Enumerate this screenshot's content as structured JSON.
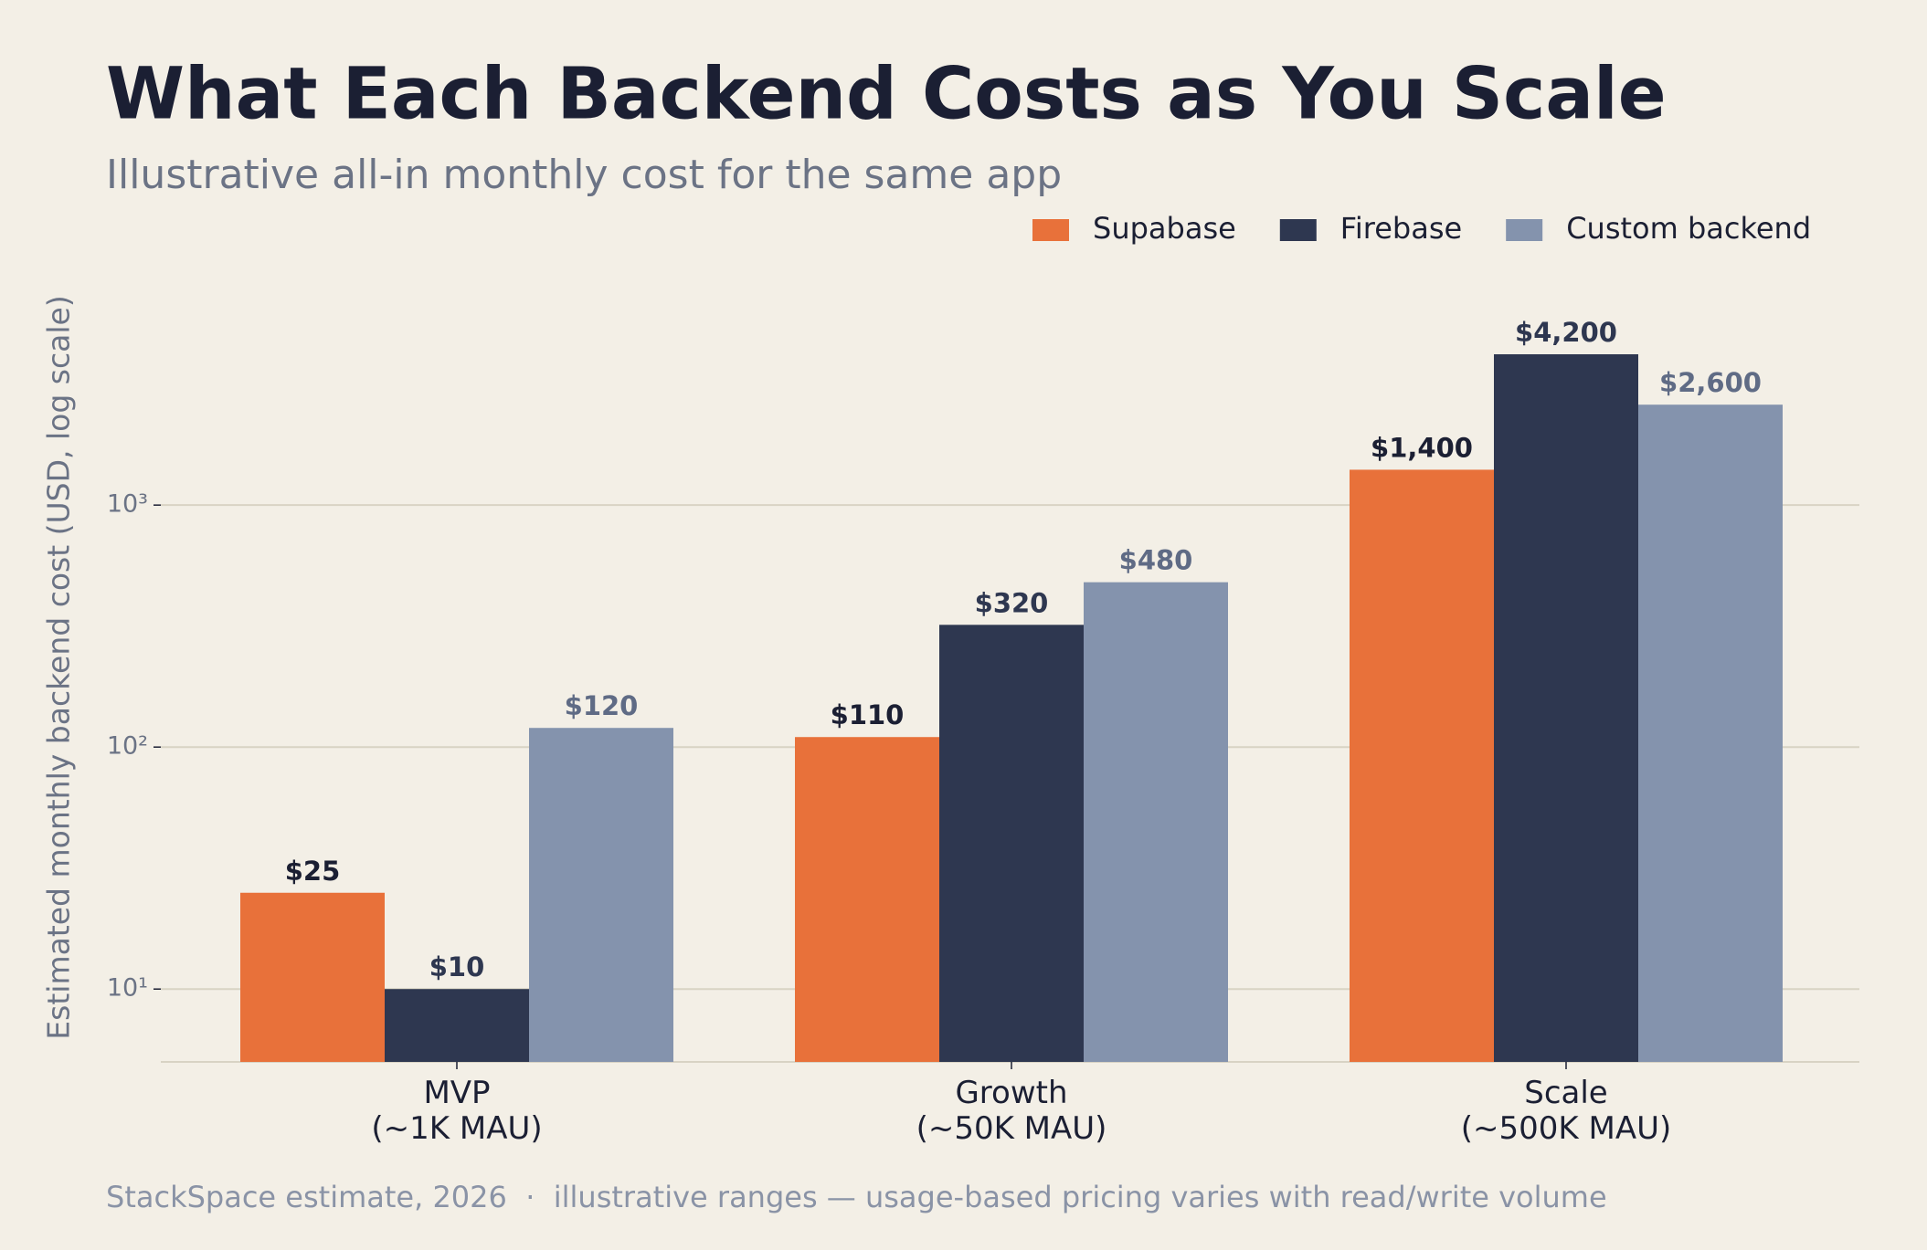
{
  "chart_data": {
    "type": "bar",
    "title": "What Each Backend Costs as You Scale",
    "subtitle": "Illustrative all-in monthly cost for the same app",
    "y_label": "Estimated monthly backend cost (USD, log scale)",
    "footer": "StackSpace estimate, 2026  ·  illustrative ranges — usage-based pricing varies with read/write volume",
    "categories": [
      "MVP\n(~1K MAU)",
      "Growth\n(~50K MAU)",
      "Scale\n(~500K MAU)"
    ],
    "series": [
      {
        "name": "Supabase",
        "color": "#e8713a",
        "values": [
          25,
          110,
          1400
        ],
        "value_labels": [
          "$25",
          "$110",
          "$1,400"
        ]
      },
      {
        "name": "Firebase",
        "color": "#2e3750",
        "values": [
          10,
          320,
          4200
        ],
        "value_labels": [
          "$10",
          "$320",
          "$4,200"
        ]
      },
      {
        "name": "Custom backend",
        "color": "#8493ad",
        "values": [
          120,
          480,
          2600
        ],
        "value_labels": [
          "$120",
          "$480",
          "$2,600"
        ]
      }
    ],
    "log_scale": true,
    "ylim": [
      5,
      9100
    ],
    "yticks": [
      {
        "value": 10,
        "label": "10¹"
      },
      {
        "value": 100,
        "label": "10²"
      },
      {
        "value": 1000,
        "label": "10³"
      }
    ],
    "grid": true,
    "legend": "top-right"
  }
}
